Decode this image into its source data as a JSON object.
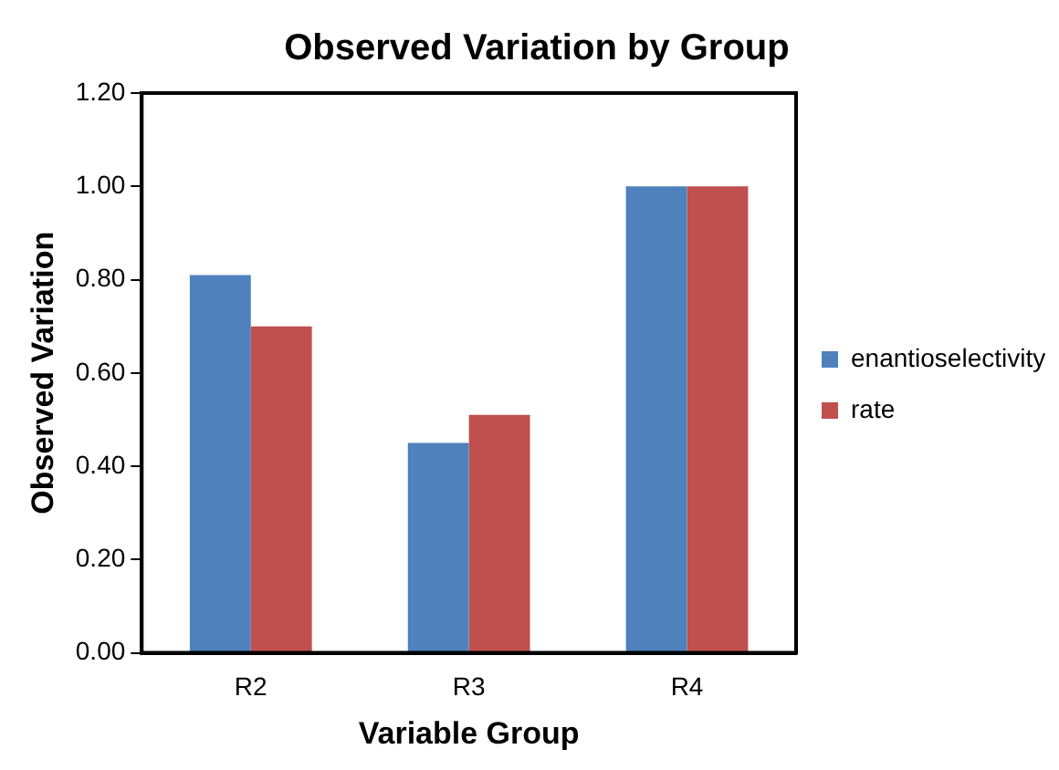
{
  "chart_data": {
    "type": "bar",
    "title": "Observed Variation by Group",
    "xlabel": "Variable Group",
    "ylabel": "Observed Variation",
    "categories": [
      "R2",
      "R3",
      "R4"
    ],
    "series": [
      {
        "name": "enantioselectivity",
        "color": "#4f81bd",
        "values": [
          0.81,
          0.45,
          1.0
        ]
      },
      {
        "name": "rate",
        "color": "#c0504d",
        "values": [
          0.7,
          0.51,
          1.0
        ]
      }
    ],
    "ylim": [
      0,
      1.2
    ],
    "yticks": [
      {
        "value": 0,
        "label": "0.00"
      },
      {
        "value": 0.2,
        "label": "0.20"
      },
      {
        "value": 0.4,
        "label": "0.40"
      },
      {
        "value": 0.6,
        "label": "0.60"
      },
      {
        "value": 0.8,
        "label": "0.80"
      },
      {
        "value": 1,
        "label": "1.00"
      },
      {
        "value": 1.2,
        "label": "1.20"
      }
    ],
    "grid": false,
    "legend": "right"
  }
}
